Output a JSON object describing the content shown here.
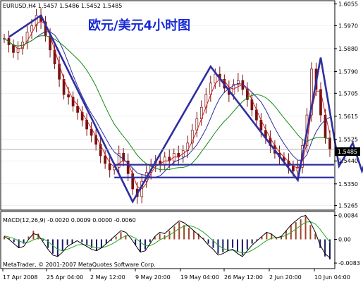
{
  "chart_data": [
    {
      "type": "candlestick",
      "symbol_header": "EURUSD,H4  1.5457  1.5486  1.5452  1.5485",
      "title": "欧元/美元4小时图",
      "y_ticks": [
        "1.6055",
        "1.5970",
        "1.5880",
        "1.5790",
        "1.5705",
        "1.5615",
        "1.5525",
        "1.5440",
        "1.5350",
        "1.5265"
      ],
      "x_ticks": [
        "17 Apr 2008",
        "25 Apr 04:00",
        "2 May 12:00",
        "9 May 20:00",
        "19 May 04:00",
        "26 May 12:00",
        "2 Jun 20:00",
        "10 Jun 04:00"
      ],
      "price_label": "1.5485",
      "ylim": [
        1.525,
        1.6065
      ],
      "close": [
        1.592,
        1.5895,
        1.5865,
        1.588,
        1.5905,
        1.5945,
        1.597,
        1.601,
        1.5985,
        1.593,
        1.5875,
        1.582,
        1.576,
        1.57,
        1.569,
        1.5655,
        1.563,
        1.56,
        1.5565,
        1.554,
        1.5505,
        1.546,
        1.543,
        1.5405,
        1.5415,
        1.547,
        1.544,
        1.539,
        1.533,
        1.53,
        1.536,
        1.5395,
        1.542,
        1.544,
        1.5425,
        1.5455,
        1.544,
        1.547,
        1.5455,
        1.548,
        1.551,
        1.556,
        1.5605,
        1.565,
        1.57,
        1.5745,
        1.578,
        1.576,
        1.5725,
        1.57,
        1.574,
        1.5755,
        1.572,
        1.568,
        1.564,
        1.56,
        1.556,
        1.553,
        1.55,
        1.547,
        1.5455,
        1.544,
        1.542,
        1.54,
        1.5415,
        1.55,
        1.562,
        1.58,
        1.572,
        1.562,
        1.553,
        1.5485
      ],
      "annotation_lines": {
        "zigzag": [
          [
            1,
            1.5925
          ],
          [
            8,
            1.601
          ],
          [
            28,
            1.528
          ],
          [
            45,
            1.581
          ],
          [
            64,
            1.5365
          ],
          [
            69,
            1.5845
          ],
          [
            73,
            1.542
          ],
          [
            76,
            1.551
          ],
          [
            78,
            1.54
          ],
          [
            80,
            1.5505
          ]
        ],
        "support_levels": [
          1.5425,
          1.5375
        ],
        "current_price": 1.5485
      }
    },
    {
      "type": "macd",
      "label": "MACD(12,26,9) -0.0020 0.0009 0.0000 -0.0060",
      "y_ticks": [
        "0.0084",
        "0.00",
        "-0.0083"
      ],
      "ylim": [
        -0.01,
        0.0095
      ],
      "histogram": [
        0.001,
        0.0005,
        -0.001,
        -0.003,
        -0.0015,
        0.001,
        0.003,
        0.002,
        -0.0005,
        -0.003,
        -0.005,
        -0.006,
        -0.004,
        -0.002,
        -0.0015,
        0.0,
        -0.001,
        -0.002,
        -0.003,
        -0.004,
        -0.003,
        -0.0015,
        -0.0005,
        0.001,
        0.0025,
        0.0015,
        0.0,
        -0.002,
        -0.0045,
        -0.0035,
        -0.001,
        0.001,
        0.002,
        0.0015,
        0.003,
        0.0045,
        0.006,
        0.005,
        0.004,
        0.003,
        0.002,
        0.0005,
        -0.0015,
        -0.003,
        -0.005,
        -0.0045,
        -0.004,
        -0.003,
        -0.0045,
        -0.0055,
        -0.0035,
        -0.0015,
        -0.0005,
        0.001,
        0.0025,
        0.002,
        0.0005,
        0.001,
        0.003,
        0.005,
        0.006,
        0.007,
        0.008,
        0.005,
        0.002,
        -0.003,
        -0.006,
        -0.007
      ],
      "macd_line": [
        0.001,
        0.0,
        -0.0015,
        -0.003,
        -0.0025,
        0.0,
        0.002,
        0.0015,
        -0.001,
        -0.0035,
        -0.0055,
        -0.006,
        -0.0045,
        -0.0025,
        -0.0015,
        -0.0005,
        -0.0015,
        -0.0025,
        -0.0035,
        -0.004,
        -0.003,
        -0.0015,
        0.0,
        0.0015,
        0.003,
        0.0025,
        0.0005,
        -0.002,
        -0.0045,
        -0.004,
        -0.0015,
        0.001,
        0.0025,
        0.002,
        0.0035,
        0.005,
        0.0065,
        0.0058,
        0.0045,
        0.003,
        0.0015,
        0.0,
        -0.002,
        -0.0035,
        -0.0055,
        -0.005,
        -0.004,
        -0.0035,
        -0.005,
        -0.006,
        -0.004,
        -0.002,
        -0.0005,
        0.001,
        0.0025,
        0.0018,
        0.0005,
        0.001,
        0.003,
        0.005,
        0.0065,
        0.0078,
        0.0084,
        0.006,
        0.0025,
        -0.002,
        -0.005,
        -0.0065
      ],
      "signal_line": [
        0.0012,
        0.0008,
        0.0003,
        -0.0005,
        -0.0012,
        -0.001,
        -0.0002,
        0.0004,
        0.0002,
        -0.0008,
        -0.0022,
        -0.0035,
        -0.004,
        -0.0035,
        -0.0028,
        -0.002,
        -0.0018,
        -0.002,
        -0.0025,
        -0.003,
        -0.003,
        -0.0025,
        -0.0018,
        -0.0008,
        0.0004,
        0.0012,
        0.0012,
        0.0004,
        -0.001,
        -0.0022,
        -0.0022,
        -0.0014,
        -0.0002,
        0.0006,
        0.0015,
        0.0026,
        0.0038,
        0.0046,
        0.0048,
        0.0044,
        0.0036,
        0.0025,
        0.001,
        -0.0005,
        -0.002,
        -0.0032,
        -0.0038,
        -0.0038,
        -0.0042,
        -0.0048,
        -0.0046,
        -0.0038,
        -0.0028,
        -0.0016,
        -0.0004,
        0.0004,
        0.0006,
        0.0008,
        0.0014,
        0.0024,
        0.0036,
        0.0048,
        0.006,
        0.0062,
        0.0054,
        0.0035,
        0.0012,
        -0.001
      ]
    }
  ],
  "footer": "MetaTrader, © 2001-2007 MetaQuotes Software Corp.",
  "colors": {
    "candle": "#7a1010",
    "ma_fast": "#cc1a1a",
    "ma_mid": "#2a2aa0",
    "ma_slow": "#118a11",
    "annotation": "#2e2ea0",
    "hist_pos": "#a0452a",
    "hist_neg": "#1a1a66",
    "macd_signal": "#22aa22"
  }
}
